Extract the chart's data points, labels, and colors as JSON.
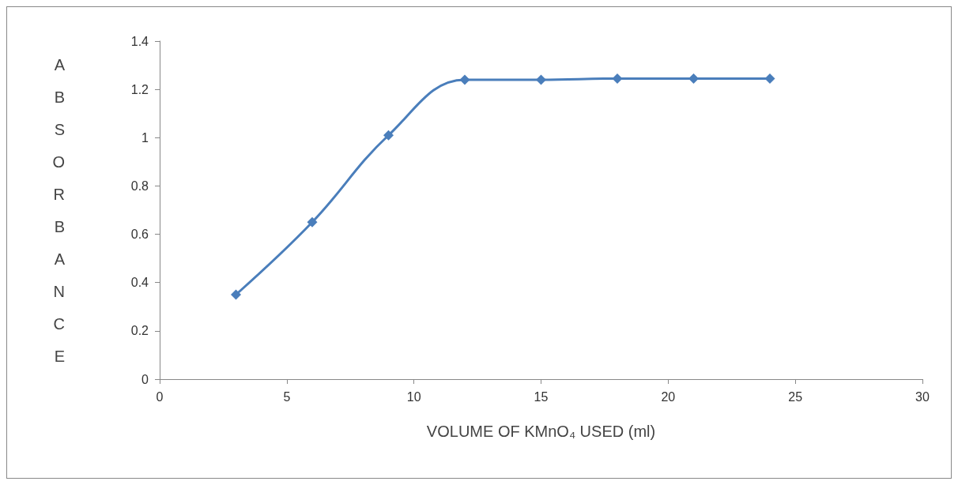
{
  "chart_data": {
    "type": "line",
    "xlabel": "VOLUME OF KMnO₄ USED (ml)",
    "ylabel": "ABSORBANCE",
    "x": [
      3,
      6,
      9,
      12,
      15,
      18,
      21,
      24
    ],
    "series": [
      {
        "color": "#4a7ebb",
        "values": [
          0.35,
          0.65,
          1.01,
          1.24,
          1.24,
          1.245,
          1.245,
          1.245
        ]
      }
    ],
    "xlim": [
      0,
      30
    ],
    "xticks": [
      0,
      5,
      10,
      15,
      20,
      25,
      30
    ],
    "ylim": [
      0,
      1.4
    ],
    "yticks": [
      0,
      0.2,
      0.4,
      0.6,
      0.8,
      1,
      1.2,
      1.4
    ],
    "grid": false,
    "marker": "diamond",
    "line_style": "solid"
  }
}
